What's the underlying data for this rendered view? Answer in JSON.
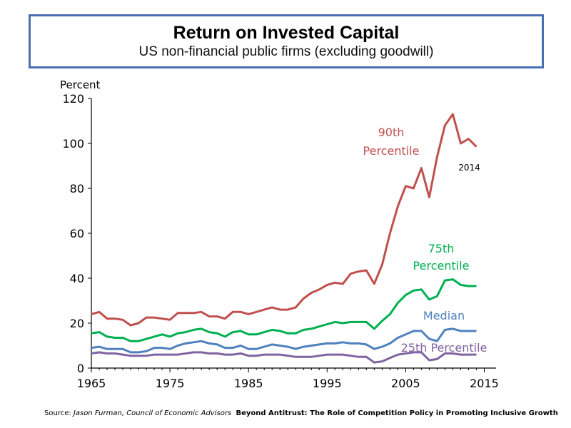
{
  "header": {
    "title": "Return on Invested Capital",
    "subtitle": "US non-financial public firms (excluding goodwill)"
  },
  "source": {
    "prefix": "Source: ",
    "author": "Jason Furman, Council of Economic Advisors",
    "work": "Beyond Antitrust: The Role of Competition Policy in Promoting Inclusive Growth"
  },
  "chart_data": {
    "type": "line",
    "title": "Return on Invested Capital",
    "subtitle": "US non-financial public firms (excluding goodwill)",
    "ylabel": "Percent",
    "xlabel": "",
    "xlim": [
      1965,
      2016.5
    ],
    "ylim": [
      0,
      120
    ],
    "xticks": [
      1965,
      1975,
      1985,
      1995,
      2005,
      2015
    ],
    "yticks": [
      0,
      20,
      40,
      60,
      80,
      100,
      120
    ],
    "grid": false,
    "x": [
      1965,
      1966,
      1967,
      1968,
      1969,
      1970,
      1971,
      1972,
      1973,
      1974,
      1975,
      1976,
      1977,
      1978,
      1979,
      1980,
      1981,
      1982,
      1983,
      1984,
      1985,
      1986,
      1987,
      1988,
      1989,
      1990,
      1991,
      1992,
      1993,
      1994,
      1995,
      1996,
      1997,
      1998,
      1999,
      2000,
      2001,
      2002,
      2003,
      2004,
      2005,
      2006,
      2007,
      2008,
      2009,
      2010,
      2011,
      2012,
      2013,
      2014
    ],
    "series": [
      {
        "name": "90th Percentile",
        "label_lines": [
          "90th",
          "Percentile"
        ],
        "color": "#c0504d",
        "values": [
          24,
          25,
          22,
          22,
          21.5,
          19,
          20,
          22.5,
          22.5,
          22,
          21.5,
          24.5,
          24.5,
          24.5,
          25,
          23,
          23,
          22,
          25,
          25,
          24,
          25,
          26,
          27,
          26,
          26,
          27,
          31,
          33.5,
          35,
          37,
          38,
          37.5,
          42,
          43,
          43.5,
          37.5,
          46,
          60,
          72,
          81,
          80,
          89,
          76,
          94,
          108,
          113,
          100,
          102,
          98.5
        ]
      },
      {
        "name": "75th Percentile",
        "label_lines": [
          "75th",
          "Percentile"
        ],
        "color": "#00b050",
        "values": [
          15.5,
          16,
          14,
          13.5,
          13.5,
          12,
          12,
          13,
          14,
          15,
          14,
          15.5,
          16,
          17,
          17.5,
          16,
          15.5,
          14,
          16,
          16.5,
          15,
          15,
          16,
          17,
          16.5,
          15.5,
          15.5,
          17,
          17.5,
          18.5,
          19.5,
          20.5,
          20,
          20.5,
          20.5,
          20.5,
          17.5,
          21,
          24,
          29,
          32.5,
          34.5,
          35,
          30.5,
          32,
          39,
          39.5,
          37,
          36.5,
          36.5
        ]
      },
      {
        "name": "Median",
        "label_lines": [
          "Median"
        ],
        "color": "#4f81bd",
        "values": [
          9,
          9.5,
          8.5,
          8.5,
          8.5,
          7,
          7,
          7.5,
          9,
          9,
          8.5,
          10,
          11,
          11.5,
          12,
          11,
          10.5,
          9,
          9,
          10,
          8.5,
          8.5,
          9.5,
          10.5,
          10,
          9.5,
          8.5,
          9.5,
          10,
          10.5,
          11,
          11,
          11.5,
          11,
          11,
          10.5,
          8.5,
          9.5,
          11,
          13.5,
          15,
          16.5,
          16.5,
          13,
          12,
          17,
          17.5,
          16.5,
          16.5,
          16.5
        ]
      },
      {
        "name": "25th Percentile",
        "label_lines": [
          "25th Percentile"
        ],
        "color": "#8064a2",
        "values": [
          6.5,
          7,
          6.5,
          6.5,
          6,
          5.5,
          5.5,
          5.5,
          6,
          6,
          6,
          6,
          6.5,
          7,
          7,
          6.5,
          6.5,
          6,
          6,
          6.5,
          5.5,
          5.5,
          6,
          6,
          6,
          5.5,
          5,
          5,
          5,
          5.5,
          6,
          6,
          6,
          5.5,
          5,
          5,
          2.5,
          3,
          4.5,
          6,
          6.5,
          7,
          7,
          3.5,
          4,
          6.5,
          6.5,
          6,
          6,
          6
        ]
      }
    ],
    "annotations": [
      {
        "text": "2014",
        "x": 2014,
        "y": 89.5
      }
    ]
  }
}
